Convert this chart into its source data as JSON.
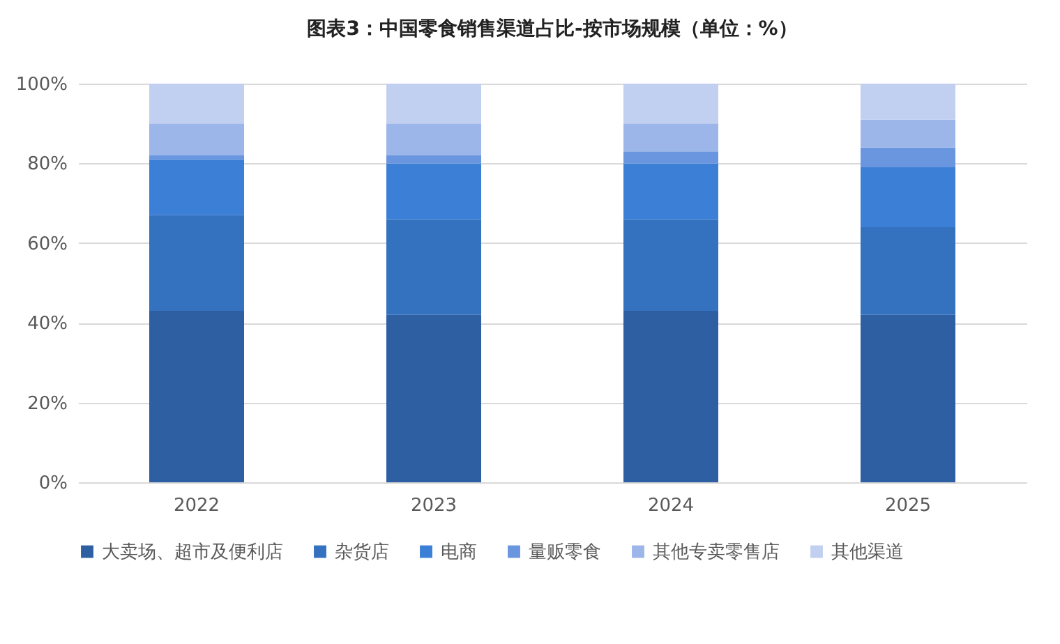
{
  "chart_data": {
    "type": "bar",
    "title": "图表3：中国零食销售渠道占比-按市场规模（单位：%）",
    "categories": [
      "2022",
      "2023",
      "2024",
      "2025"
    ],
    "stacked": true,
    "series": [
      {
        "name": "大卖场、超市及便利店",
        "color": "#2e5fa3",
        "values": [
          43,
          42,
          43,
          42
        ]
      },
      {
        "name": "杂货店",
        "color": "#3472c0",
        "values": [
          24,
          24,
          23,
          22
        ]
      },
      {
        "name": "电商",
        "color": "#3c7fd6",
        "values": [
          14,
          14,
          14,
          15
        ]
      },
      {
        "name": "量贩零食",
        "color": "#6a96e0",
        "values": [
          1,
          2,
          3,
          5
        ]
      },
      {
        "name": "其他专卖零售店",
        "color": "#9db6ea",
        "values": [
          8,
          8,
          7,
          7
        ]
      },
      {
        "name": "其他渠道",
        "color": "#c1cff0",
        "values": [
          10,
          10,
          10,
          9
        ]
      }
    ],
    "ylim": [
      0,
      100
    ],
    "yticks": [
      {
        "value": 0,
        "label": "0%"
      },
      {
        "value": 20,
        "label": "20%"
      },
      {
        "value": 40,
        "label": "40%"
      },
      {
        "value": 60,
        "label": "60%"
      },
      {
        "value": 80,
        "label": "80%"
      },
      {
        "value": 100,
        "label": "100%"
      }
    ],
    "grid": "y",
    "legend": "bottom"
  }
}
